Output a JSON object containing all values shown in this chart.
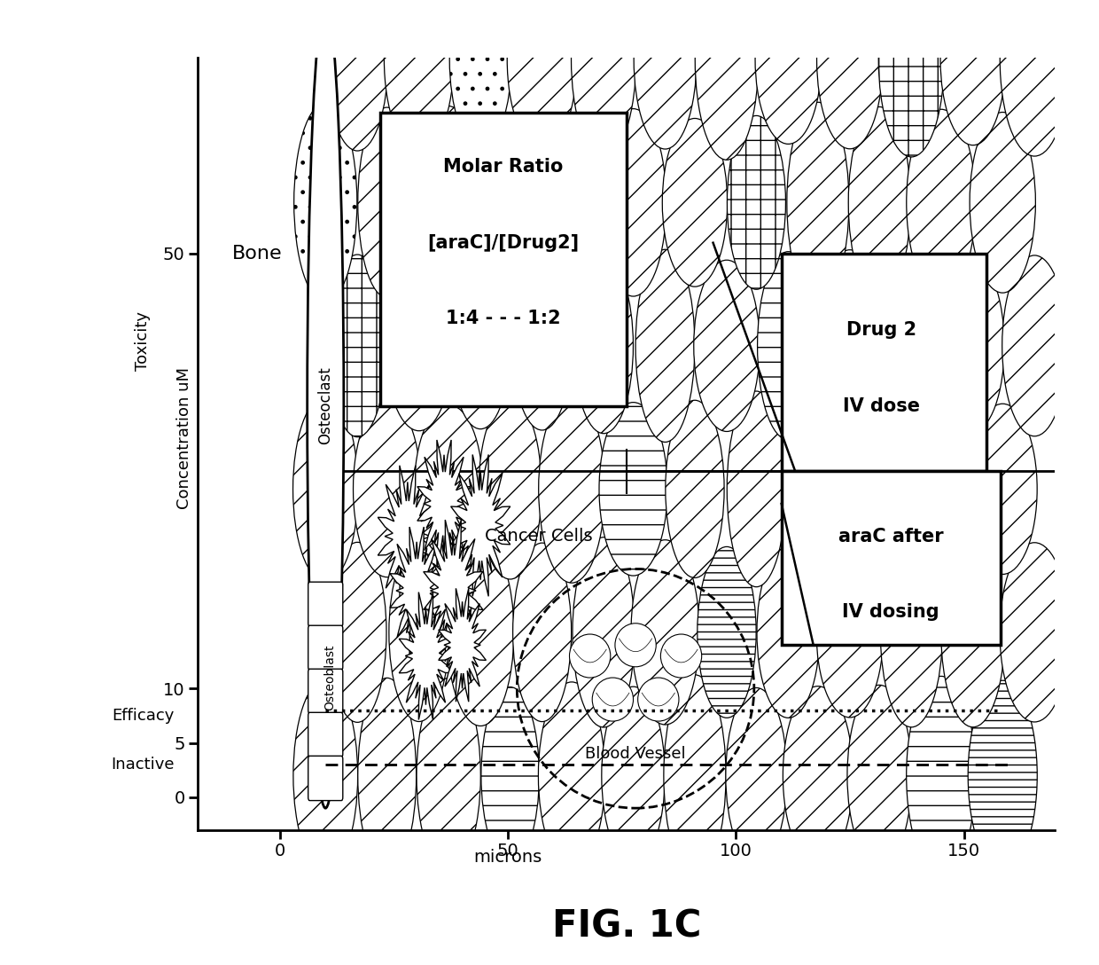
{
  "title": "FIG. 1C",
  "xlabel": "microns",
  "xlim": [
    -18,
    170
  ],
  "ylim": [
    -3,
    68
  ],
  "xticks": [
    0,
    50,
    100,
    150
  ],
  "yticks": [
    0,
    5,
    10,
    50
  ],
  "bone_label": "Bone",
  "osteoclast_label": "Osteoclast",
  "osteoblast_label": "Osteoblast",
  "cancer_cells_label": "Cancer Cells",
  "blood_vessel_label": "Blood Vessel",
  "drug2_line1": "Drug 2",
  "drug2_line2": "IV dose",
  "araC_line1": "araC after",
  "araC_line2": "IV dosing",
  "molar_ratio_line1": "Molar Ratio",
  "molar_ratio_line2": "[araC]/[Drug2]",
  "molar_ratio_line3": "1:4 - - - 1:2",
  "toxicity_label": "Toxicity",
  "concentration_label": "Concentration uM",
  "efficacy_label": "Efficacy",
  "inactive_label": "Inactive",
  "bg_color": "#ffffff"
}
